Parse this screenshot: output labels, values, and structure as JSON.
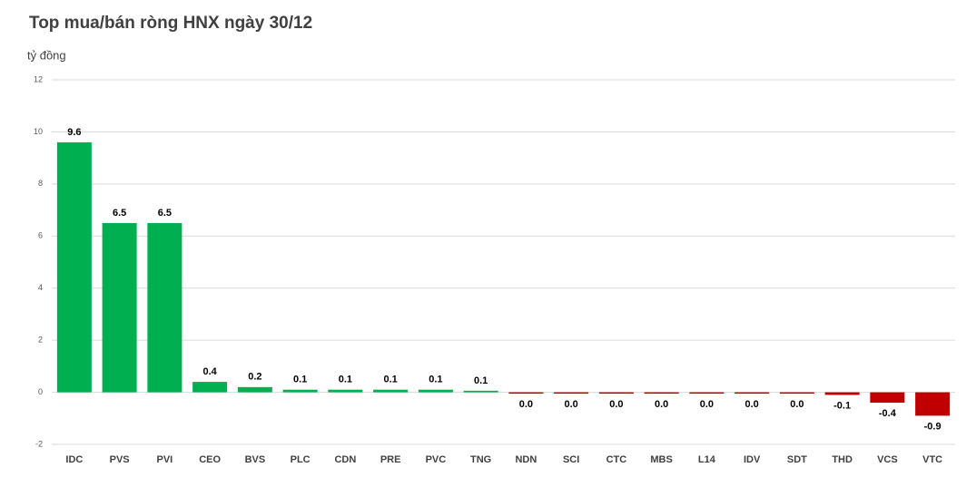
{
  "chart_data": {
    "type": "bar",
    "title": "Top mua/bán ròng HNX ngày 30/12",
    "y_label": "tỷ đồng",
    "categories": [
      "IDC",
      "PVS",
      "PVI",
      "CEO",
      "BVS",
      "PLC",
      "CDN",
      "PRE",
      "PVC",
      "TNG",
      "NDN",
      "SCI",
      "CTC",
      "MBS",
      "L14",
      "IDV",
      "SDT",
      "THD",
      "VCS",
      "VTC"
    ],
    "values": [
      9.6,
      6.5,
      6.5,
      0.4,
      0.2,
      0.1,
      0.1,
      0.1,
      0.1,
      0.06,
      -0.03,
      -0.03,
      -0.03,
      -0.03,
      -0.03,
      -0.03,
      -0.03,
      -0.1,
      -0.4,
      -0.9
    ],
    "value_labels": [
      "9.6",
      "6.5",
      "6.5",
      "0.4",
      "0.2",
      "0.1",
      "0.1",
      "0.1",
      "0.1",
      "0.1",
      "0.0",
      "0.0",
      "0.0",
      "0.0",
      "0.0",
      "0.0",
      "0.0",
      "-0.1",
      "-0.4",
      "-0.9"
    ],
    "positive_color": "#00b050",
    "negative_color": "#c00000",
    "ylim": [
      -2,
      12
    ],
    "yticks": [
      -2,
      0,
      2,
      4,
      6,
      8,
      10,
      12
    ],
    "grid": true
  }
}
